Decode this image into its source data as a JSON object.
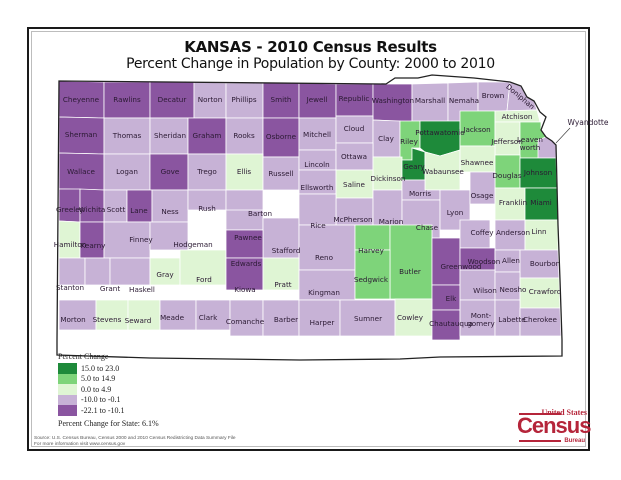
{
  "header": {
    "title": "KANSAS - 2010 Census Results",
    "subtitle": "Percent Change in Population by County:  2000 to 2010"
  },
  "colors": {
    "c1": "#1e8a3a",
    "c2": "#7ed47a",
    "c3": "#dff5d4",
    "c4": "#c7b2d6",
    "c5": "#8a55a0",
    "border": "#ffffff",
    "outline": "#222222"
  },
  "legend": {
    "title": "Percent Change",
    "items": [
      {
        "range": "15.0 to 23.0",
        "color": "#1e8a3a"
      },
      {
        "range": "5.0 to 14.9",
        "color": "#7ed47a"
      },
      {
        "range": "0.0 to 4.9",
        "color": "#dff5d4"
      },
      {
        "range": "-10.0 to -0.1",
        "color": "#c7b2d6"
      },
      {
        "range": "-22.1 to -10.1",
        "color": "#8a55a0"
      }
    ],
    "state_change": "Percent Change for State:  6.1%"
  },
  "source": {
    "line1": "Source:  U.S. Census Bureau, Census 2000 and 2010 Census Redistricting Data Summary File",
    "line2": "For more information visit www.census.gov"
  },
  "logo": {
    "top": "United States",
    "main": "Census",
    "bottom": "Bureau"
  },
  "counties": {
    "cheyenne": {
      "name": "Cheyenne",
      "class": 5
    },
    "rawlins": {
      "name": "Rawlins",
      "class": 5
    },
    "decatur": {
      "name": "Decatur",
      "class": 5
    },
    "norton": {
      "name": "Norton",
      "class": 4
    },
    "phillips": {
      "name": "Phillips",
      "class": 4
    },
    "smith": {
      "name": "Smith",
      "class": 5
    },
    "jewell": {
      "name": "Jewell",
      "class": 5
    },
    "republic": {
      "name": "Republic",
      "class": 5
    },
    "washington": {
      "name": "Washington",
      "class": 5
    },
    "marshall": {
      "name": "Marshall",
      "class": 4
    },
    "nemaha": {
      "name": "Nemaha",
      "class": 4
    },
    "brown": {
      "name": "Brown",
      "class": 4
    },
    "doniphan": {
      "name": "Doniphan",
      "class": 4
    },
    "sherman": {
      "name": "Sherman",
      "class": 5
    },
    "thomas": {
      "name": "Thomas",
      "class": 4
    },
    "sheridan": {
      "name": "Sheridan",
      "class": 4
    },
    "graham": {
      "name": "Graham",
      "class": 5
    },
    "rooks": {
      "name": "Rooks",
      "class": 4
    },
    "osborne": {
      "name": "Osborne",
      "class": 5
    },
    "mitchell": {
      "name": "Mitchell",
      "class": 4
    },
    "cloud": {
      "name": "Cloud",
      "class": 4
    },
    "clay": {
      "name": "Clay",
      "class": 4
    },
    "riley": {
      "name": "Riley",
      "class": 2
    },
    "pottawatomie": {
      "name": "Pottawatomie",
      "class": 1
    },
    "jackson": {
      "name": "Jackson",
      "class": 2
    },
    "atchison": {
      "name": "Atchison",
      "class": 3
    },
    "jefferson": {
      "name": "Jefferson",
      "class": 3
    },
    "leavenworth": {
      "name": "Leaven worth",
      "class": 2
    },
    "wyandotte": {
      "name": "Wyandotte",
      "class": 4
    },
    "wallace": {
      "name": "Wallace",
      "class": 5
    },
    "logan": {
      "name": "Logan",
      "class": 4
    },
    "gove": {
      "name": "Gove",
      "class": 5
    },
    "trego": {
      "name": "Trego",
      "class": 4
    },
    "ellis": {
      "name": "Ellis",
      "class": 3
    },
    "russell": {
      "name": "Russell",
      "class": 4
    },
    "lincoln": {
      "name": "Lincoln",
      "class": 4
    },
    "ottawa": {
      "name": "Ottawa",
      "class": 4
    },
    "dickinson": {
      "name": "Dickinson",
      "class": 3
    },
    "geary": {
      "name": "Geary",
      "class": 1
    },
    "wabaunsee": {
      "name": "Wabaunsee",
      "class": 3
    },
    "shawnee": {
      "name": "Shawnee",
      "class": 3
    },
    "douglas": {
      "name": "Douglas",
      "class": 2
    },
    "johnson": {
      "name": "Johnson",
      "class": 1
    },
    "greeley": {
      "name": "Greeley",
      "class": 5
    },
    "wichita": {
      "name": "Wichita",
      "class": 5
    },
    "scott": {
      "name": "Scott",
      "class": 4
    },
    "lane": {
      "name": "Lane",
      "class": 5
    },
    "ness": {
      "name": "Ness",
      "class": 4
    },
    "rush": {
      "name": "Rush",
      "class": 4
    },
    "barton": {
      "name": "Barton",
      "class": 4
    },
    "ellsworth": {
      "name": "Ellsworth",
      "class": 4
    },
    "saline": {
      "name": "Saline",
      "class": 3
    },
    "mcpherson": {
      "name": "McPherson",
      "class": 4
    },
    "marion": {
      "name": "Marion",
      "class": 4
    },
    "morris": {
      "name": "Morris",
      "class": 4
    },
    "chase": {
      "name": "Chase",
      "class": 4
    },
    "lyon": {
      "name": "Lyon",
      "class": 4
    },
    "osage": {
      "name": "Osage",
      "class": 4
    },
    "franklin": {
      "name": "Franklin",
      "class": 3
    },
    "miami": {
      "name": "Miami",
      "class": 1
    },
    "hamilton": {
      "name": "Hamilton",
      "class": 3
    },
    "kearny": {
      "name": "Kearny",
      "class": 5
    },
    "finney": {
      "name": "Finney",
      "class": 4
    },
    "hodgeman": {
      "name": "Hodgeman",
      "class": 4
    },
    "pawnee": {
      "name": "Pawnee",
      "class": 4
    },
    "stafford": {
      "name": "Stafford",
      "class": 4
    },
    "rice": {
      "name": "Rice",
      "class": 4
    },
    "reno": {
      "name": "Reno",
      "class": 4
    },
    "harvey": {
      "name": "Harvey",
      "class": 2
    },
    "butler": {
      "name": "Butler",
      "class": 2
    },
    "greenwood": {
      "name": "Greenwood",
      "class": 5
    },
    "coffey": {
      "name": "Coffey",
      "class": 4
    },
    "anderson": {
      "name": "Anderson",
      "class": 4
    },
    "linn": {
      "name": "Linn",
      "class": 3
    },
    "woodson": {
      "name": "Woodson",
      "class": 5
    },
    "allen": {
      "name": "Allen",
      "class": 4
    },
    "bourbon": {
      "name": "Bourbon",
      "class": 4
    },
    "stanton": {
      "name": "Stanton",
      "class": 4
    },
    "grant": {
      "name": "Grant",
      "class": 4
    },
    "haskell": {
      "name": "Haskell",
      "class": 4
    },
    "gray": {
      "name": "Gray",
      "class": 3
    },
    "ford": {
      "name": "Ford",
      "class": 3
    },
    "edwards": {
      "name": "Edwards",
      "class": 5
    },
    "kiowa": {
      "name": "Kiowa",
      "class": 5
    },
    "pratt": {
      "name": "Pratt",
      "class": 3
    },
    "kingman": {
      "name": "Kingman",
      "class": 4
    },
    "sedgwick": {
      "name": "Sedgwick",
      "class": 2
    },
    "elk": {
      "name": "Elk",
      "class": 5
    },
    "wilson": {
      "name": "Wilson",
      "class": 4
    },
    "neosho": {
      "name": "Neosho",
      "class": 4
    },
    "crawford": {
      "name": "Crawford",
      "class": 3
    },
    "morton": {
      "name": "Morton",
      "class": 4
    },
    "stevens": {
      "name": "Stevens",
      "class": 3
    },
    "seward": {
      "name": "Seward",
      "class": 3
    },
    "meade": {
      "name": "Meade",
      "class": 4
    },
    "clark": {
      "name": "Clark",
      "class": 4
    },
    "comanche": {
      "name": "Comanche",
      "class": 4
    },
    "barber": {
      "name": "Barber",
      "class": 4
    },
    "harper": {
      "name": "Harper",
      "class": 4
    },
    "sumner": {
      "name": "Sumner",
      "class": 4
    },
    "cowley": {
      "name": "Cowley",
      "class": 3
    },
    "chautauqua": {
      "name": "Chautauqua",
      "class": 5
    },
    "montgomery": {
      "name": "Mont- gomery",
      "class": 4
    },
    "labette": {
      "name": "Labette",
      "class": 4
    },
    "cherokee": {
      "name": "Cherokee",
      "class": 4
    }
  }
}
